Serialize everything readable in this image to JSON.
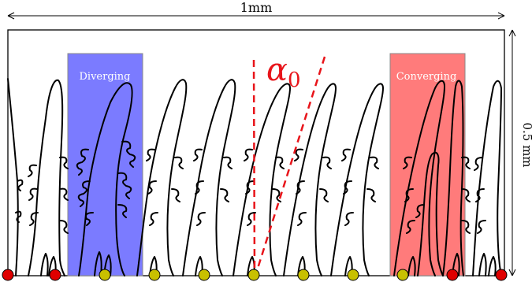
{
  "dimensions": {
    "width_label": "1mm",
    "height_label": "0.5 mm"
  },
  "regions": {
    "diverging": {
      "label": "Diverging",
      "color": "#7b7bff"
    },
    "converging": {
      "label": "Converging",
      "color": "#ff7b7b"
    }
  },
  "angle": {
    "label": "α",
    "subscript": "0",
    "color": "#e8141a"
  },
  "colors": {
    "outline": "#000000",
    "red_seed": "#e00000",
    "olive_seed": "#c8c000",
    "dash": "#e8141a"
  }
}
